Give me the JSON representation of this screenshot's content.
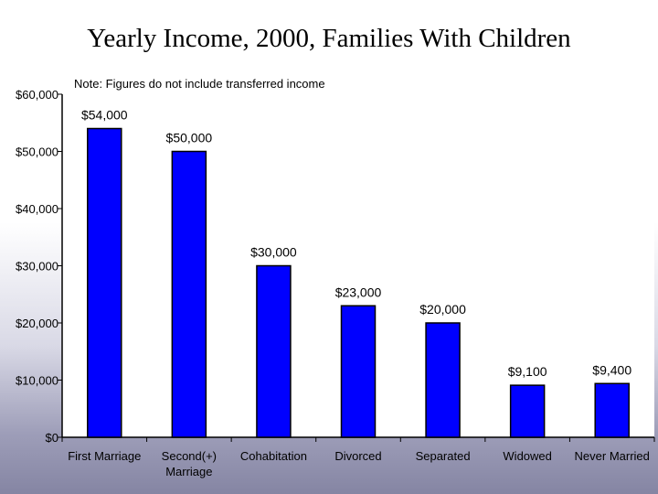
{
  "chart_data": {
    "type": "bar",
    "title": "Yearly Income, 2000, Families With Children",
    "subtitle": "Note: Figures do not include transferred income",
    "xlabel": "",
    "ylabel": "",
    "categories": [
      [
        "First Marriage"
      ],
      [
        "Second(+)",
        "Marriage"
      ],
      [
        "Cohabitation"
      ],
      [
        "Divorced"
      ],
      [
        "Separated"
      ],
      [
        "Widowed"
      ],
      [
        "Never Married"
      ]
    ],
    "values": [
      54000,
      50000,
      30000,
      23000,
      20000,
      9100,
      9400
    ],
    "data_labels": [
      "$54,000",
      "$50,000",
      "$30,000",
      "$23,000",
      "$20,000",
      "$9,100",
      "$9,400"
    ],
    "ylim": [
      0,
      60000
    ],
    "yticks": [
      0,
      10000,
      20000,
      30000,
      40000,
      50000,
      60000
    ],
    "ytick_labels": [
      "$0",
      "$10,000",
      "$20,000",
      "$30,000",
      "$40,000",
      "$50,000",
      "$60,000"
    ],
    "grid": false,
    "legend": "none",
    "colors": {
      "bar": "#0000ff",
      "bar_outline": "#000000",
      "plot_bg": "#ffffff"
    }
  }
}
